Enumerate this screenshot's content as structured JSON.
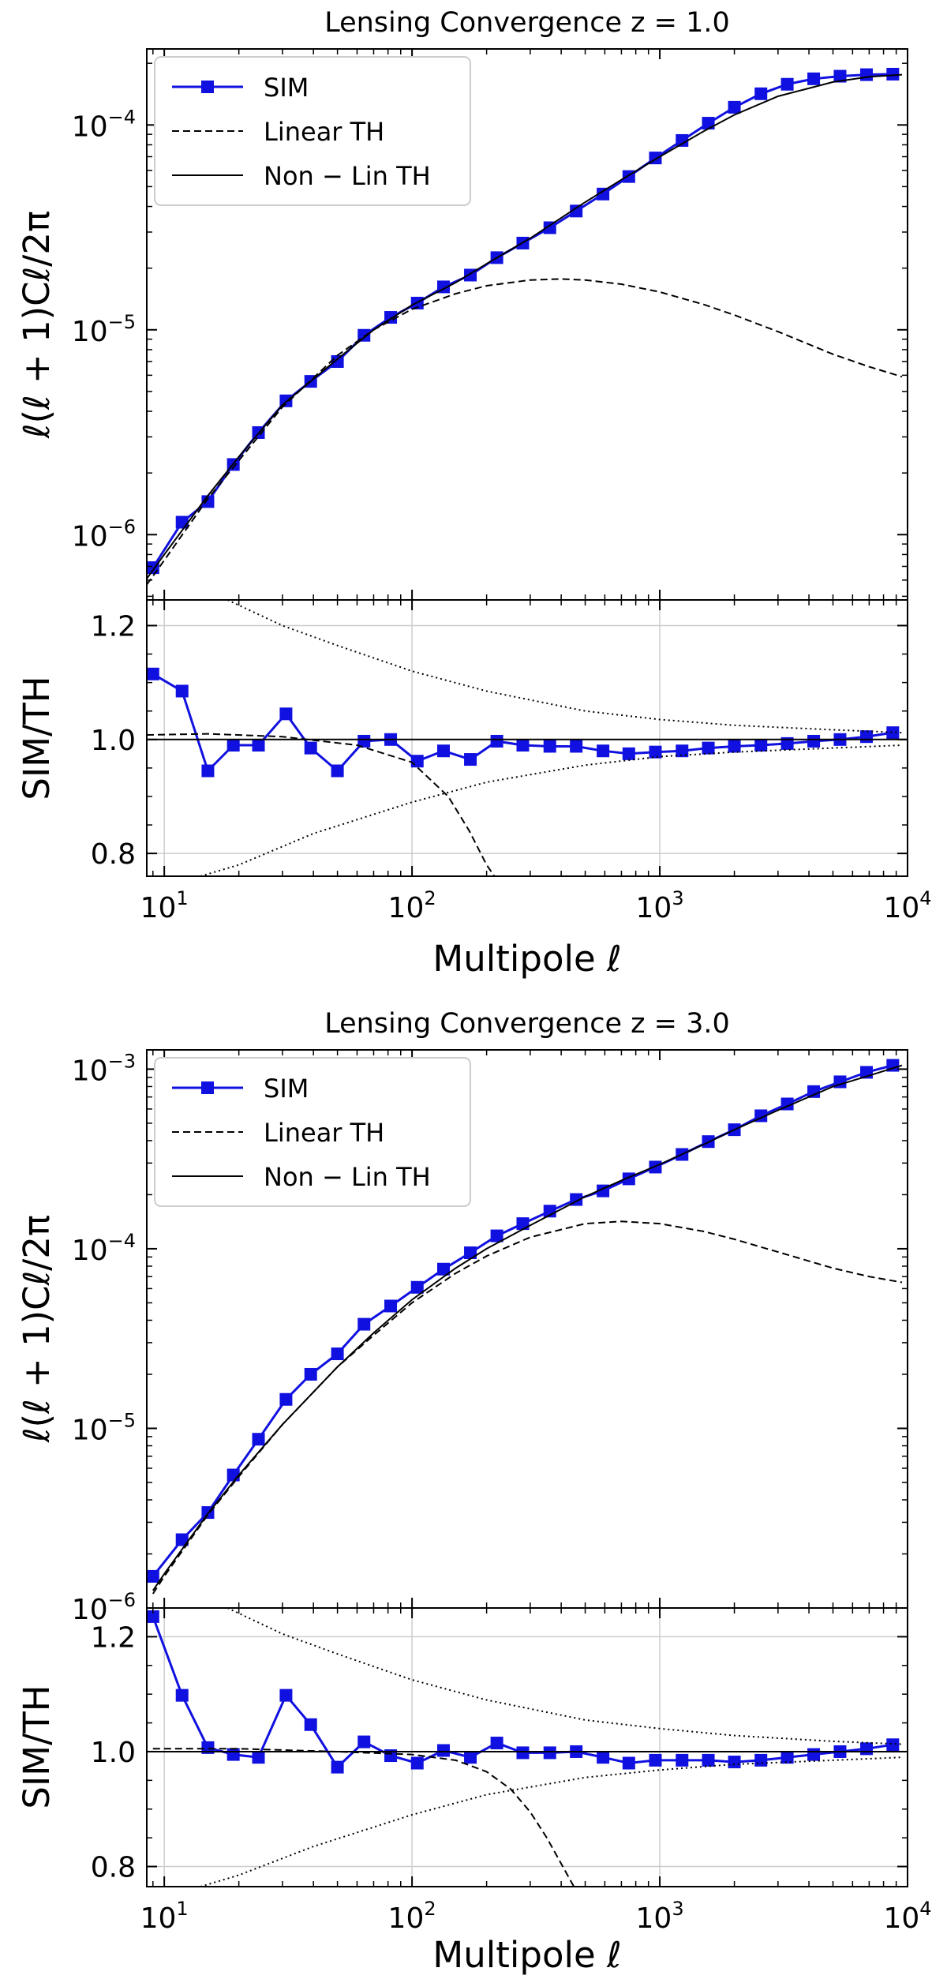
{
  "chart_data": [
    {
      "type": "line",
      "title": "Lensing Convergence z = 1.0",
      "xscale": "log",
      "xlim": [
        8.5,
        10000
      ],
      "xlabel": "Multipole ℓ",
      "xticks": [
        {
          "value": 10,
          "base": "10",
          "exp": "1"
        },
        {
          "value": 100,
          "base": "10",
          "exp": "2"
        },
        {
          "value": 1000,
          "base": "10",
          "exp": "3"
        },
        {
          "value": 10000,
          "base": "10",
          "exp": "4"
        }
      ],
      "top": {
        "ylabel": "ℓ(ℓ + 1)Cℓ/2π",
        "yscale": "log",
        "ylim": [
          4.8e-07,
          0.000235
        ],
        "yticks": [
          {
            "value": 1e-06,
            "base": "10",
            "exp": "−6"
          },
          {
            "value": 1e-05,
            "base": "10",
            "exp": "−5"
          },
          {
            "value": 0.0001,
            "base": "10",
            "exp": "−4"
          }
        ],
        "legend": {
          "placement": "top-left",
          "entries": [
            "SIM",
            "Linear TH",
            "Non − Lin TH"
          ]
        },
        "series": [
          {
            "name": "SIM",
            "style": "blue-squares",
            "x": [
              9,
              11.8,
              15,
              19,
              24,
              31,
              39,
              50,
              64,
              82,
              105,
              134,
              172,
              220,
              280,
              360,
              460,
              590,
              750,
              960,
              1230,
              1570,
              2000,
              2560,
              3270,
              4180,
              5340,
              6830,
              8720
            ],
            "y": [
              6.9e-07,
              1.15e-06,
              1.45e-06,
              2.2e-06,
              3.15e-06,
              4.5e-06,
              5.6e-06,
              7e-06,
              9.4e-06,
              1.15e-05,
              1.35e-05,
              1.62e-05,
              1.85e-05,
              2.25e-05,
              2.65e-05,
              3.15e-05,
              3.8e-05,
              4.6e-05,
              5.6e-05,
              6.9e-05,
              8.4e-05,
              0.000102,
              0.000122,
              0.000142,
              0.000158,
              0.000168,
              0.000173,
              0.000176,
              0.000177
            ]
          },
          {
            "name": "Linear TH",
            "style": "dashed",
            "x": [
              8.5,
              10,
              15,
              20,
              30,
              50,
              70,
              100,
              150,
              200,
              300,
              400,
              500,
              700,
              1000,
              1500,
              2000,
              3000,
              5000,
              7000,
              9500
            ],
            "y": [
              5.7e-07,
              7.5e-07,
              1.5e-06,
              2.3e-06,
              4.2e-06,
              7.5e-06,
              1e-05,
              1.26e-05,
              1.5e-05,
              1.64e-05,
              1.75e-05,
              1.77e-05,
              1.75e-05,
              1.67e-05,
              1.53e-05,
              1.33e-05,
              1.18e-05,
              9.8e-06,
              7.6e-06,
              6.6e-06,
              5.9e-06
            ]
          },
          {
            "name": "Non − Lin TH",
            "style": "solid",
            "x": [
              8.5,
              10,
              15,
              20,
              30,
              50,
              70,
              100,
              150,
              200,
              300,
              500,
              700,
              1000,
              1500,
              2000,
              3000,
              5000,
              7000,
              9500
            ],
            "y": [
              6.1e-07,
              8e-07,
              1.55e-06,
              2.4e-06,
              4.3e-06,
              7.2e-06,
              1e-05,
              1.32e-05,
              1.7e-05,
              2.1e-05,
              2.8e-05,
              4.2e-05,
              5.4e-05,
              7e-05,
              9.3e-05,
              0.000112,
              0.000138,
              0.000162,
              0.000172,
              0.000176
            ]
          }
        ]
      },
      "bottom": {
        "ylabel": "SIM/TH",
        "ylim": [
          0.76,
          1.245
        ],
        "yticks": [
          {
            "value": 0.8,
            "label": "0.8"
          },
          {
            "value": 1.0,
            "label": "1.0"
          },
          {
            "value": 1.2,
            "label": "1.2"
          }
        ],
        "series": [
          {
            "name": "SIM/Non-Lin",
            "style": "blue-squares",
            "x": [
              9,
              11.8,
              15,
              19,
              24,
              31,
              39,
              50,
              64,
              82,
              105,
              134,
              172,
              220,
              280,
              360,
              460,
              590,
              750,
              960,
              1230,
              1570,
              2000,
              2560,
              3270,
              4180,
              5340,
              6830,
              8720
            ],
            "y": [
              1.115,
              1.085,
              0.945,
              0.99,
              0.99,
              1.045,
              0.985,
              0.945,
              0.997,
              1.0,
              0.962,
              0.98,
              0.965,
              0.997,
              0.99,
              0.988,
              0.988,
              0.98,
              0.975,
              0.978,
              0.98,
              0.985,
              0.988,
              0.99,
              0.993,
              0.997,
              1.0,
              1.005,
              1.012
            ]
          },
          {
            "name": "Non-Lin reference",
            "style": "solid",
            "x": [
              8.5,
              10000
            ],
            "y": [
              1.0,
              1.0
            ]
          },
          {
            "name": "Linear/Non-Lin",
            "style": "dashed",
            "x": [
              8.5,
              15,
              30,
              60,
              100,
              140,
              170,
              200,
              215
            ],
            "y": [
              1.008,
              1.01,
              1.005,
              0.99,
              0.96,
              0.9,
              0.84,
              0.78,
              0.76
            ]
          },
          {
            "name": "upper error envelope",
            "style": "dotted",
            "x": [
              18,
              30,
              50,
              100,
              200,
              500,
              1000,
              2000,
              5000,
              9500
            ],
            "y": [
              1.245,
              1.2,
              1.165,
              1.12,
              1.085,
              1.05,
              1.035,
              1.025,
              1.017,
              1.012
            ]
          },
          {
            "name": "lower error envelope",
            "style": "dotted",
            "x": [
              14,
              20,
              40,
              100,
              200,
              500,
              1000,
              2000,
              5000,
              9500
            ],
            "y": [
              0.76,
              0.78,
              0.835,
              0.89,
              0.925,
              0.955,
              0.97,
              0.978,
              0.985,
              0.99
            ]
          }
        ]
      }
    },
    {
      "type": "line",
      "title": "Lensing Convergence z = 3.0",
      "xscale": "log",
      "xlim": [
        8.5,
        10000
      ],
      "xlabel": "Multipole ℓ",
      "xticks": [
        {
          "value": 10,
          "base": "10",
          "exp": "1"
        },
        {
          "value": 100,
          "base": "10",
          "exp": "2"
        },
        {
          "value": 1000,
          "base": "10",
          "exp": "3"
        },
        {
          "value": 10000,
          "base": "10",
          "exp": "4"
        }
      ],
      "top": {
        "ylabel": "ℓ(ℓ + 1)Cℓ/2π",
        "yscale": "log",
        "ylim": [
          1e-06,
          0.00128
        ],
        "yticks": [
          {
            "value": 1e-06,
            "base": "10",
            "exp": "−6"
          },
          {
            "value": 1e-05,
            "base": "10",
            "exp": "−5"
          },
          {
            "value": 0.0001,
            "base": "10",
            "exp": "−4"
          },
          {
            "value": 0.001,
            "base": "10",
            "exp": "−3"
          }
        ],
        "legend": {
          "placement": "top-left",
          "entries": [
            "SIM",
            "Linear TH",
            "Non − Lin TH"
          ]
        },
        "series": [
          {
            "name": "SIM",
            "style": "blue-squares",
            "x": [
              9,
              11.8,
              15,
              19,
              24,
              31,
              39,
              50,
              64,
              82,
              105,
              134,
              172,
              220,
              280,
              360,
              460,
              590,
              750,
              960,
              1230,
              1570,
              2000,
              2560,
              3270,
              4180,
              5340,
              6830,
              8720
            ],
            "y": [
              1.5e-06,
              2.4e-06,
              3.4e-06,
              5.5e-06,
              8.7e-06,
              1.45e-05,
              2e-05,
              2.6e-05,
              3.8e-05,
              4.8e-05,
              6.1e-05,
              7.7e-05,
              9.5e-05,
              0.000118,
              0.000138,
              0.000162,
              0.000188,
              0.00021,
              0.000245,
              0.000285,
              0.000335,
              0.000395,
              0.00046,
              0.00055,
              0.00064,
              0.00075,
              0.00085,
              0.00096,
              0.00105
            ]
          },
          {
            "name": "Linear TH",
            "style": "dashed",
            "x": [
              9,
              10,
              15,
              20,
              30,
              50,
              70,
              100,
              150,
              200,
              300,
              500,
              700,
              1000,
              1500,
              2000,
              3000,
              5000,
              7000,
              9500
            ],
            "y": [
              1.2e-06,
              1.5e-06,
              3.3e-06,
              5.4e-06,
              1.05e-05,
              2.2e-05,
              3.3e-05,
              5e-05,
              7.3e-05,
              9.1e-05,
              0.000116,
              0.000138,
              0.000142,
              0.000138,
              0.000125,
              0.000113,
              9.6e-05,
              7.8e-05,
              7e-05,
              6.5e-05
            ]
          },
          {
            "name": "Non − Lin TH",
            "style": "solid",
            "x": [
              9,
              10,
              15,
              20,
              30,
              50,
              70,
              100,
              150,
              200,
              300,
              500,
              700,
              1000,
              1500,
              2000,
              3000,
              5000,
              7000,
              9500
            ],
            "y": [
              1.25e-06,
              1.55e-06,
              3.35e-06,
              5.5e-06,
              1.05e-05,
              2.2e-05,
              3.4e-05,
              5.2e-05,
              7.8e-05,
              0.0001,
              0.000135,
              0.000195,
              0.00024,
              0.000295,
              0.00038,
              0.00046,
              0.00059,
              0.0008,
              0.00092,
              0.00105
            ]
          }
        ]
      },
      "bottom": {
        "ylabel": "SIM/TH",
        "ylim": [
          0.765,
          1.25
        ],
        "yticks": [
          {
            "value": 0.8,
            "label": "0.8"
          },
          {
            "value": 1.0,
            "label": "1.0"
          },
          {
            "value": 1.2,
            "label": "1.2"
          }
        ],
        "series": [
          {
            "name": "SIM/Non-Lin",
            "style": "blue-squares",
            "x": [
              9,
              11.8,
              15,
              19,
              24,
              31,
              39,
              50,
              64,
              82,
              105,
              134,
              172,
              220,
              280,
              360,
              460,
              590,
              750,
              960,
              1230,
              1570,
              2000,
              2560,
              3270,
              4180,
              5340,
              6830,
              8720
            ],
            "y": [
              1.235,
              1.098,
              1.007,
              0.995,
              0.99,
              1.098,
              1.047,
              0.973,
              1.017,
              0.993,
              0.98,
              1.002,
              0.99,
              1.015,
              0.998,
              0.998,
              1.0,
              0.99,
              0.98,
              0.985,
              0.985,
              0.985,
              0.982,
              0.985,
              0.99,
              0.995,
              1.0,
              1.005,
              1.012
            ]
          },
          {
            "name": "Non-Lin reference",
            "style": "solid",
            "x": [
              8.5,
              10000
            ],
            "y": [
              1.0,
              1.0
            ]
          },
          {
            "name": "Linear/Non-Lin",
            "style": "dashed",
            "x": [
              9,
              20,
              50,
              100,
              150,
              200,
              250,
              300,
              350,
              400,
              450
            ],
            "y": [
              1.005,
              1.005,
              1.0,
              0.995,
              0.985,
              0.965,
              0.935,
              0.895,
              0.85,
              0.805,
              0.765
            ]
          },
          {
            "name": "upper error envelope",
            "style": "dotted",
            "x": [
              18,
              30,
              50,
              100,
              200,
              500,
              1000,
              2000,
              5000,
              9500
            ],
            "y": [
              1.25,
              1.205,
              1.17,
              1.125,
              1.09,
              1.055,
              1.04,
              1.028,
              1.018,
              1.013
            ]
          },
          {
            "name": "lower error envelope",
            "style": "dotted",
            "x": [
              14,
              20,
              40,
              100,
              200,
              500,
              1000,
              2000,
              5000,
              9500
            ],
            "y": [
              0.765,
              0.785,
              0.835,
              0.89,
              0.925,
              0.955,
              0.968,
              0.978,
              0.985,
              0.99
            ]
          }
        ]
      }
    }
  ]
}
